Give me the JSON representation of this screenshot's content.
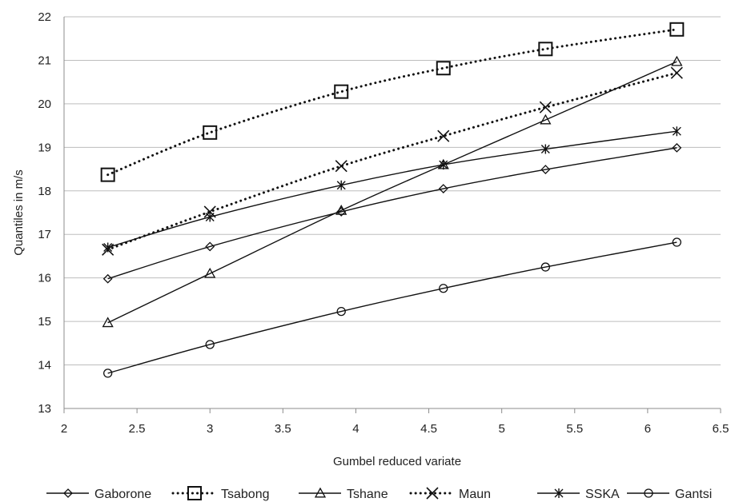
{
  "chart_data": {
    "type": "line",
    "title": "",
    "xlabel": "Gumbel reduced variate",
    "ylabel": "Quantiles in m/s",
    "xlim": [
      2,
      6.5
    ],
    "ylim": [
      13,
      22
    ],
    "x_ticks": [
      "2",
      "2.5",
      "3",
      "3.5",
      "4",
      "4.5",
      "5",
      "5.5",
      "6",
      "6.5"
    ],
    "y_ticks": [
      "13",
      "14",
      "15",
      "16",
      "17",
      "18",
      "19",
      "20",
      "21",
      "22"
    ],
    "grid": "horizontal",
    "legend_position": "bottom",
    "x": [
      2.3,
      3.0,
      3.9,
      4.6,
      5.3,
      6.2
    ],
    "series": [
      {
        "name": "Gaborone",
        "marker": "diamond",
        "line": "solid",
        "values": [
          15.98,
          16.72,
          17.52,
          18.05,
          18.49,
          18.99
        ]
      },
      {
        "name": "Tsabong",
        "marker": "square",
        "line": "dotted",
        "values": [
          18.37,
          19.34,
          20.28,
          20.82,
          21.26,
          21.71
        ]
      },
      {
        "name": "Tshane",
        "marker": "triangle",
        "line": "solid",
        "values": [
          14.97,
          16.1,
          17.55,
          18.6,
          19.63,
          20.97
        ]
      },
      {
        "name": "Maun",
        "marker": "x",
        "line": "dotted",
        "values": [
          16.65,
          17.52,
          18.57,
          19.26,
          19.92,
          20.71
        ]
      },
      {
        "name": "SSKA",
        "marker": "star",
        "line": "solid",
        "values": [
          16.7,
          17.4,
          18.13,
          18.6,
          18.96,
          19.37
        ]
      },
      {
        "name": "Gantsi",
        "marker": "circle",
        "line": "solid",
        "values": [
          13.81,
          14.47,
          15.23,
          15.76,
          16.25,
          16.82
        ]
      }
    ]
  }
}
